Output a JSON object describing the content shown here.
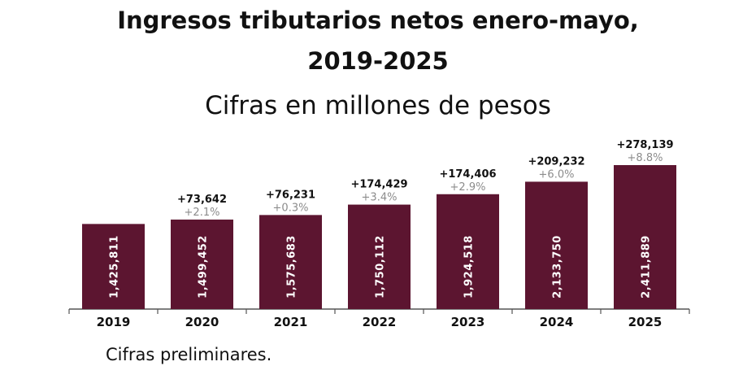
{
  "chart_data": {
    "type": "bar",
    "title_line1": "Ingresos tributarios netos enero-mayo,",
    "title_line2": "2019-2025",
    "subtitle": "Cifras en millones de pesos",
    "footnote": "Cifras preliminares.",
    "categories": [
      "2019",
      "2020",
      "2021",
      "2022",
      "2023",
      "2024",
      "2025"
    ],
    "values": [
      1425811,
      1499452,
      1575683,
      1750112,
      1924518,
      2133750,
      2411889
    ],
    "value_labels": [
      "1,425,811",
      "1,499,452",
      "1,575,683",
      "1,750,112",
      "1,924,518",
      "2,133,750",
      "2,411,889"
    ],
    "change_abs": [
      "",
      "+73,642",
      "+76,231",
      "+174,429",
      "+174,406",
      "+209,232",
      "+278,139"
    ],
    "change_pct": [
      "",
      "+2.1%",
      "+0.3%",
      "+3.4%",
      "+2.9%",
      "+6.0%",
      "+8.8%"
    ],
    "ylim": [
      0,
      2411889
    ],
    "grid": false,
    "colors": {
      "bar": "#5c1530",
      "abs": "#111111",
      "pct": "#8c8c8c",
      "label": "#ffffff"
    }
  }
}
